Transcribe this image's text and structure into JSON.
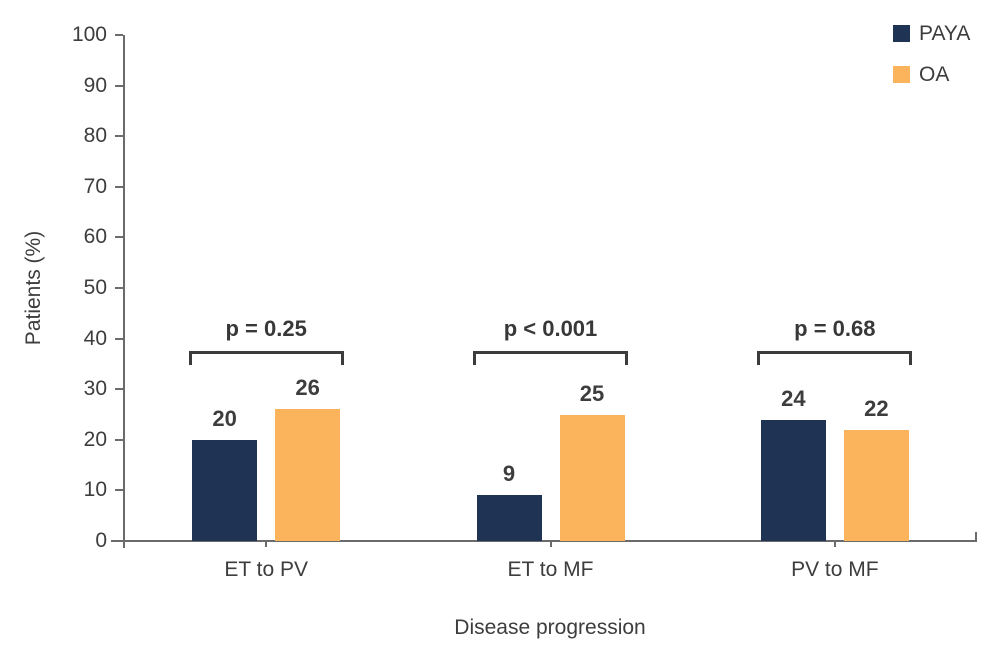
{
  "chart_data": {
    "type": "bar",
    "title": "",
    "categories": [
      "ET to PV",
      "ET to MF",
      "PV to MF"
    ],
    "series": [
      {
        "name": "PAYA",
        "color": "#1F3455",
        "values": [
          20,
          9,
          24
        ]
      },
      {
        "name": "OA",
        "color": "#FBB45C",
        "values": [
          26,
          25,
          22
        ]
      }
    ],
    "p_values": [
      "p = 0.25",
      "p < 0.001",
      "p = 0.68"
    ],
    "xlabel": "Disease progression",
    "ylabel": "Patients (%)",
    "ylim": [
      0,
      100
    ],
    "ytick_step": 10,
    "yticks": [
      0,
      10,
      20,
      30,
      40,
      50,
      60,
      70,
      80,
      90,
      100
    ],
    "grid": false,
    "legend_position": "top-right"
  },
  "colors": {
    "axis": "#6B6B6B",
    "text": "#3D3D3D",
    "bracket": "#3C3C3C",
    "background": "#FFFFFF"
  }
}
